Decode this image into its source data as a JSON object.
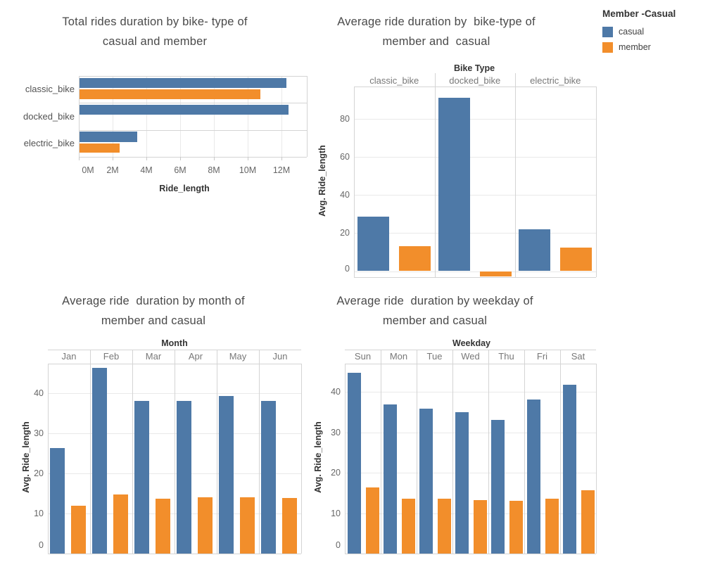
{
  "legend": {
    "title": "Member -Casual",
    "items": [
      {
        "label": "casual",
        "color": "#4e79a7"
      },
      {
        "label": "member",
        "color": "#f28e2b"
      }
    ]
  },
  "chart_data": [
    {
      "type": "bar",
      "orientation": "horizontal",
      "title_lines": [
        "Total rides duration by bike- type of",
        "casual and member"
      ],
      "categories": [
        "classic_bike",
        "docked_bike",
        "electric_bike"
      ],
      "series": [
        {
          "name": "casual",
          "color": "#4e79a7",
          "values_millions": [
            12.3,
            12.4,
            3.45
          ]
        },
        {
          "name": "member",
          "color": "#f28e2b",
          "values_millions": [
            10.75,
            0,
            2.4
          ]
        }
      ],
      "xlabel": "Ride_length",
      "x_ticks": [
        {
          "label": "0M",
          "value": 0
        },
        {
          "label": "2M",
          "value": 2
        },
        {
          "label": "4M",
          "value": 4
        },
        {
          "label": "6M",
          "value": 6
        },
        {
          "label": "8M",
          "value": 8
        },
        {
          "label": "10M",
          "value": 10
        },
        {
          "label": "12M",
          "value": 12
        }
      ],
      "xlim_millions": [
        0,
        13.5
      ],
      "grid": true
    },
    {
      "type": "bar",
      "orientation": "vertical",
      "title_lines": [
        "Average ride duration by  bike-type of",
        "member and  casual"
      ],
      "column_field": "Bike Type",
      "categories": [
        "classic_bike",
        "docked_bike",
        "electric_bike"
      ],
      "series": [
        {
          "name": "casual",
          "color": "#4e79a7",
          "values": [
            28.5,
            91,
            22
          ]
        },
        {
          "name": "member",
          "color": "#f28e2b",
          "values": [
            13,
            -2.7,
            12.3
          ]
        }
      ],
      "ylabel": "Avg. Ride_length",
      "y_ticks": [
        0,
        20,
        40,
        60,
        80
      ],
      "ylim": [
        -3.3,
        96.5
      ],
      "grid": true
    },
    {
      "type": "bar",
      "orientation": "vertical",
      "title_lines": [
        "Average ride  duration by month of",
        "member and casual"
      ],
      "column_field": "Month",
      "categories": [
        "Jan",
        "Feb",
        "Mar",
        "Apr",
        "May",
        "Jun"
      ],
      "series": [
        {
          "name": "casual",
          "color": "#4e79a7",
          "values": [
            26.3,
            46.3,
            38,
            38,
            39.3,
            38
          ]
        },
        {
          "name": "member",
          "color": "#f28e2b",
          "values": [
            12,
            14.7,
            13.6,
            14,
            14,
            13.9
          ]
        }
      ],
      "ylabel": "Avg. Ride_length",
      "y_ticks": [
        0,
        10,
        20,
        30,
        40
      ],
      "ylim": [
        0,
        47.4
      ],
      "grid": true
    },
    {
      "type": "bar",
      "orientation": "vertical",
      "title_lines": [
        "Average ride  duration by weekday of",
        "member and casual"
      ],
      "column_field": "Weekday",
      "categories": [
        "Sun",
        "Mon",
        "Tue",
        "Wed",
        "Thu",
        "Fri",
        "Sat"
      ],
      "series": [
        {
          "name": "casual",
          "color": "#4e79a7",
          "values": [
            44.7,
            36.9,
            35.8,
            35,
            33,
            38.1,
            41.7
          ]
        },
        {
          "name": "member",
          "color": "#f28e2b",
          "values": [
            16.3,
            13.6,
            13.6,
            13.2,
            13,
            13.6,
            15.7
          ]
        }
      ],
      "ylabel": "Avg. Ride_length",
      "y_ticks": [
        0,
        10,
        20,
        30,
        40
      ],
      "ylim": [
        0,
        47
      ],
      "grid": true
    }
  ]
}
